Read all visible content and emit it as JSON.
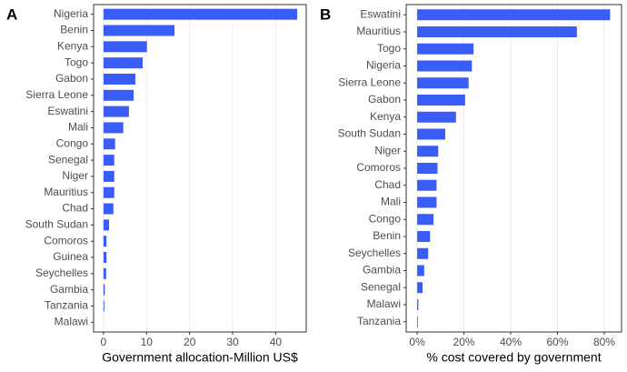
{
  "chart_data": [
    {
      "type": "barh",
      "panel_label": "A",
      "x_label": "Government allocation-Million US$",
      "color": "#3a5cf7",
      "grid": true,
      "categories": [
        "Nigeria",
        "Benin",
        "Kenya",
        "Togo",
        "Gabon",
        "Sierra Leone",
        "Eswatini",
        "Mali",
        "Congo",
        "Senegal",
        "Niger",
        "Mauritius",
        "Chad",
        "South Sudan",
        "Comoros",
        "Guinea",
        "Seychelles",
        "Gambia",
        "Tanzania",
        "Malawi"
      ],
      "values": [
        45,
        16.5,
        10.1,
        9.1,
        7.4,
        7,
        5.9,
        4.6,
        2.7,
        2.5,
        2.5,
        2.5,
        2.3,
        1.3,
        0.7,
        0.7,
        0.6,
        0.3,
        0.2,
        0
      ],
      "xlim": [
        -2.3,
        47.1
      ],
      "xticks": [
        0,
        10,
        20,
        30,
        40
      ]
    },
    {
      "type": "barh",
      "panel_label": "B",
      "x_label": "% cost covered by government",
      "color": "#3a5cf7",
      "grid": true,
      "categories": [
        "Eswatini",
        "Mauritius",
        "Togo",
        "Nigeria",
        "Sierra Leone",
        "Gabon",
        "Kenya",
        "South Sudan",
        "Niger",
        "Comoros",
        "Chad",
        "Mali",
        "Congo",
        "Benin",
        "Seychelles",
        "Gambia",
        "Senegal",
        "Malawi",
        "Tanzania"
      ],
      "values": [
        82.5,
        68.3,
        24.1,
        23.4,
        22,
        20.5,
        16.6,
        12,
        9,
        8.7,
        8.3,
        8.3,
        7,
        5.5,
        4.7,
        3,
        2.3,
        0.5,
        0.3
      ],
      "xlim": [
        -4.7,
        87.4
      ],
      "xticks": [
        {
          "value": 0,
          "label": "0%"
        },
        {
          "value": 20,
          "label": "20%"
        },
        {
          "value": 40,
          "label": "40%"
        },
        {
          "value": 60,
          "label": "60%"
        },
        {
          "value": 80,
          "label": "80%"
        }
      ]
    }
  ]
}
